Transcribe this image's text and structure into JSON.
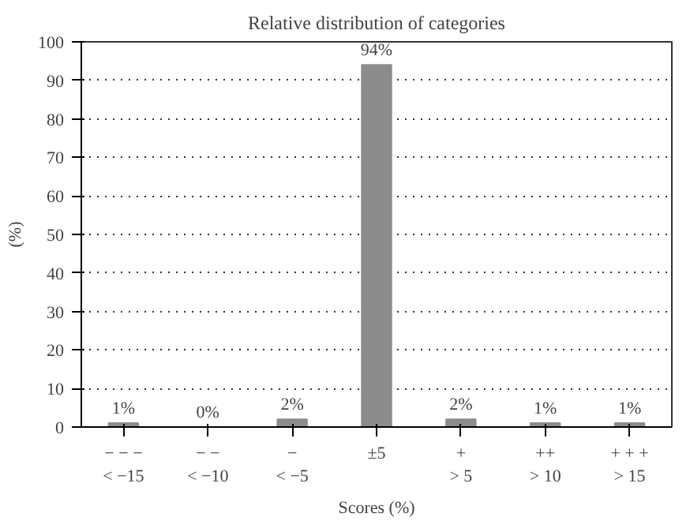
{
  "chart_data": {
    "type": "bar",
    "title": "Relative distribution of categories",
    "xlabel": "Scores (%)",
    "ylabel": "(%)",
    "categories": [
      "− − −\n< −15",
      "− −\n< −10",
      "−\n< −5",
      "±5",
      "+\n> 5",
      "++\n> 10",
      "+ + +\n> 15"
    ],
    "values": [
      1,
      0,
      2,
      94,
      2,
      1,
      1
    ],
    "value_labels": [
      "1%",
      "0%",
      "2%",
      "94%",
      "2%",
      "1%",
      "1%"
    ],
    "color": "#8c8c8c",
    "ylim": [
      0,
      100
    ],
    "yticks": [
      0,
      10,
      20,
      30,
      40,
      50,
      60,
      70,
      80,
      90,
      100
    ],
    "grid": "y"
  }
}
